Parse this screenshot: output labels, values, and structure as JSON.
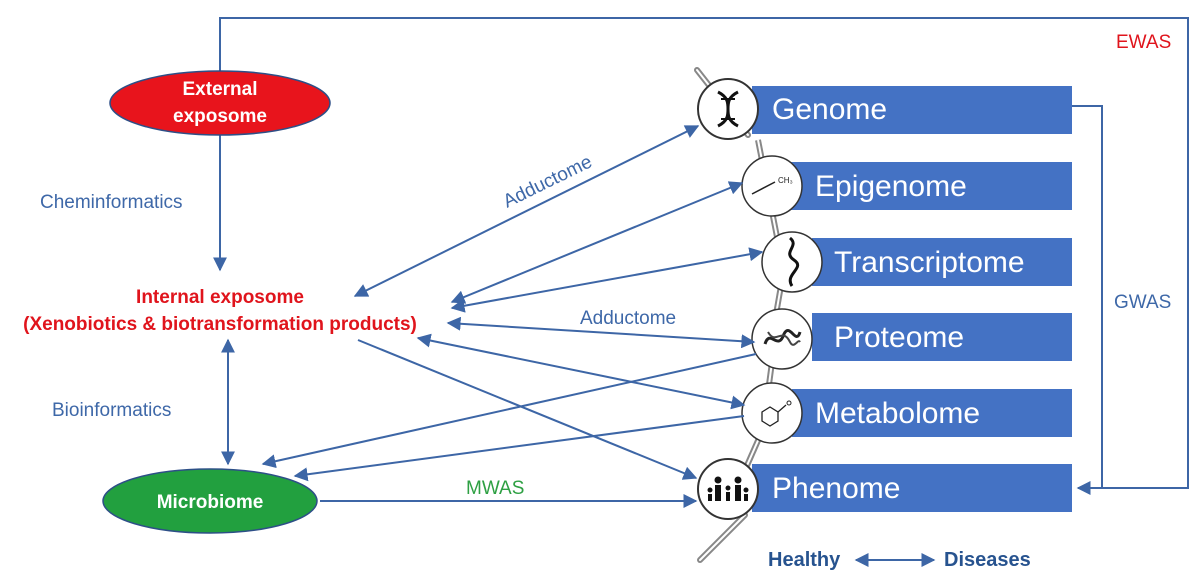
{
  "labels": {
    "external_exposome": [
      "External",
      "exposome"
    ],
    "internal_exposome": [
      "Internal exposome",
      "(Xenobiotics & biotransformation products)"
    ],
    "microbiome": "Microbiome",
    "cheminformatics": "Cheminformatics",
    "bioinformatics": "Bioinformatics",
    "adductome_top": "Adductome",
    "adductome_mid": "Adductome",
    "mwas": "MWAS",
    "ewas": "EWAS",
    "gwas": "GWAS",
    "healthy": "Healthy",
    "diseases": "Diseases"
  },
  "omics": [
    {
      "label": "Genome",
      "icon": "dna-icon"
    },
    {
      "label": "Epigenome",
      "icon": "methyl-group-icon"
    },
    {
      "label": "Transcriptome",
      "icon": "rna-strand-icon"
    },
    {
      "label": "Proteome",
      "icon": "protein-structure-icon"
    },
    {
      "label": "Metabolome",
      "icon": "benzene-molecule-icon"
    },
    {
      "label": "Phenome",
      "icon": "family-icon"
    }
  ],
  "colors": {
    "blue_box": "#4472c4",
    "arrow": "#3d66a6",
    "red_accent": "#e0141c",
    "green_accent": "#2ea043"
  }
}
